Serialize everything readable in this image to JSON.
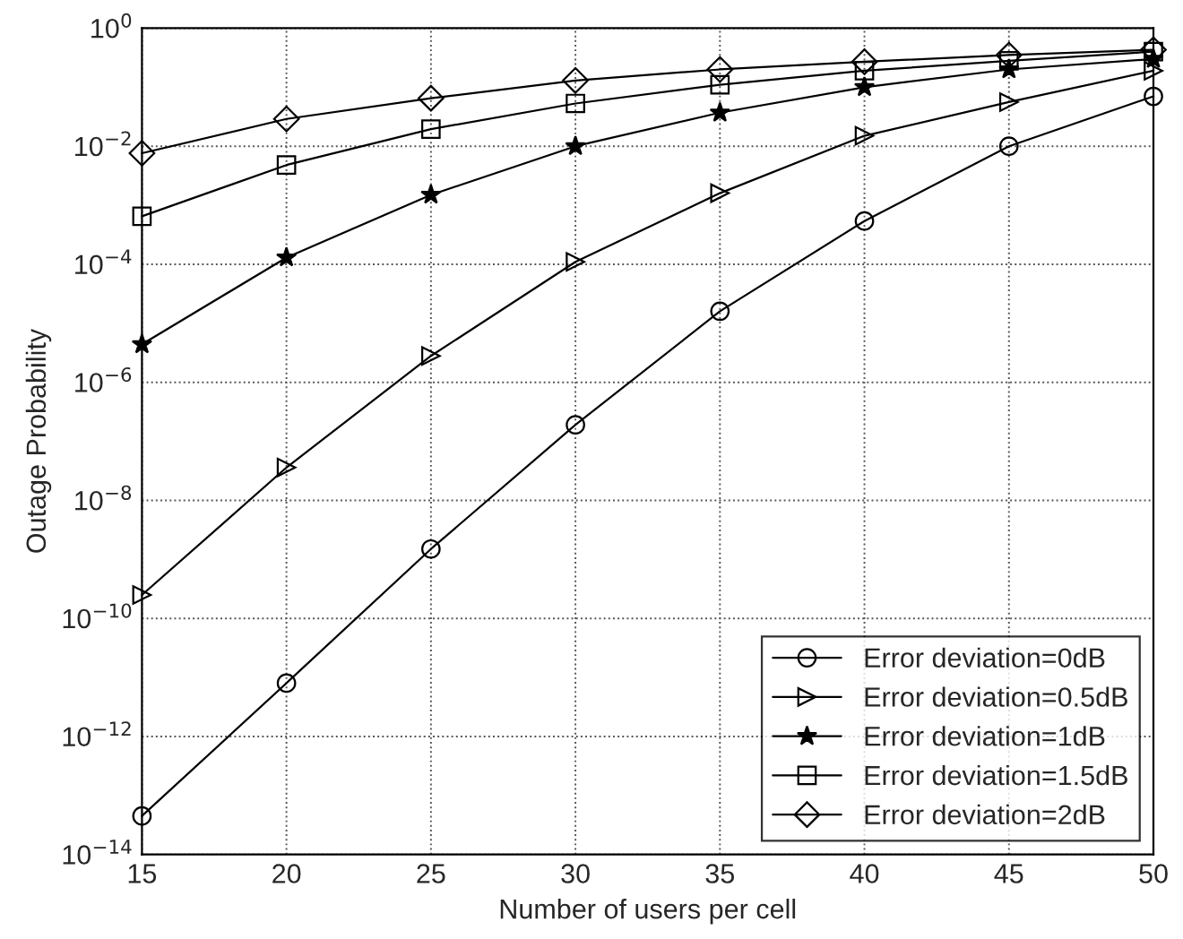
{
  "chart_data": {
    "type": "line",
    "xlabel": "Number of users per cell",
    "ylabel": "Outage Probability",
    "log": "y",
    "grid": true,
    "legend": "bottom right",
    "line_style": "solid",
    "x": [
      15,
      20,
      25,
      30,
      35,
      40,
      45,
      50
    ],
    "xlim": [
      15,
      50
    ],
    "xticks": [
      15,
      20,
      25,
      30,
      35,
      40,
      45,
      50
    ],
    "ylim": [
      1e-14,
      1
    ],
    "yticks": [
      {
        "value": 1e-14,
        "label": "10$^{−14}$"
      },
      {
        "value": 1e-12,
        "label": "10$^{−12}$"
      },
      {
        "value": 1e-10,
        "label": "10$^{−10}$"
      },
      {
        "value": 1e-08,
        "label": "10$^{−8}$"
      },
      {
        "value": 1e-06,
        "label": "10$^{−6}$"
      },
      {
        "value": 0.0001,
        "label": "10$^{−4}$"
      },
      {
        "value": 0.01,
        "label": "10$^{−2}$"
      },
      {
        "value": 1,
        "label": "10$^{0}$"
      }
    ],
    "series": [
      {
        "name": "Error deviation=0dB",
        "color": "#000000",
        "marker": "circle",
        "values": [
          4.5e-14,
          8e-12,
          1.5e-09,
          1.9e-07,
          1.6e-05,
          0.00054,
          0.01,
          0.07
        ]
      },
      {
        "name": "Error deviation=0.5dB",
        "color": "#000000",
        "marker": "triangle",
        "values": [
          2.5e-10,
          3.6e-08,
          2.8e-06,
          0.00011,
          0.0016,
          0.015,
          0.056,
          0.19
        ]
      },
      {
        "name": "Error deviation=1dB",
        "color": "#000000",
        "marker": "star",
        "values": [
          4.4e-06,
          0.00013,
          0.0015,
          0.01,
          0.037,
          0.1,
          0.2,
          0.3
        ]
      },
      {
        "name": "Error deviation=1.5dB",
        "color": "#000000",
        "marker": "square",
        "values": [
          0.00065,
          0.0048,
          0.0195,
          0.053,
          0.11,
          0.19,
          0.28,
          0.4
        ]
      },
      {
        "name": "Error deviation=2dB",
        "color": "#000000",
        "marker": "diamond",
        "values": [
          0.0076,
          0.029,
          0.065,
          0.13,
          0.2,
          0.27,
          0.35,
          0.43
        ]
      }
    ]
  }
}
